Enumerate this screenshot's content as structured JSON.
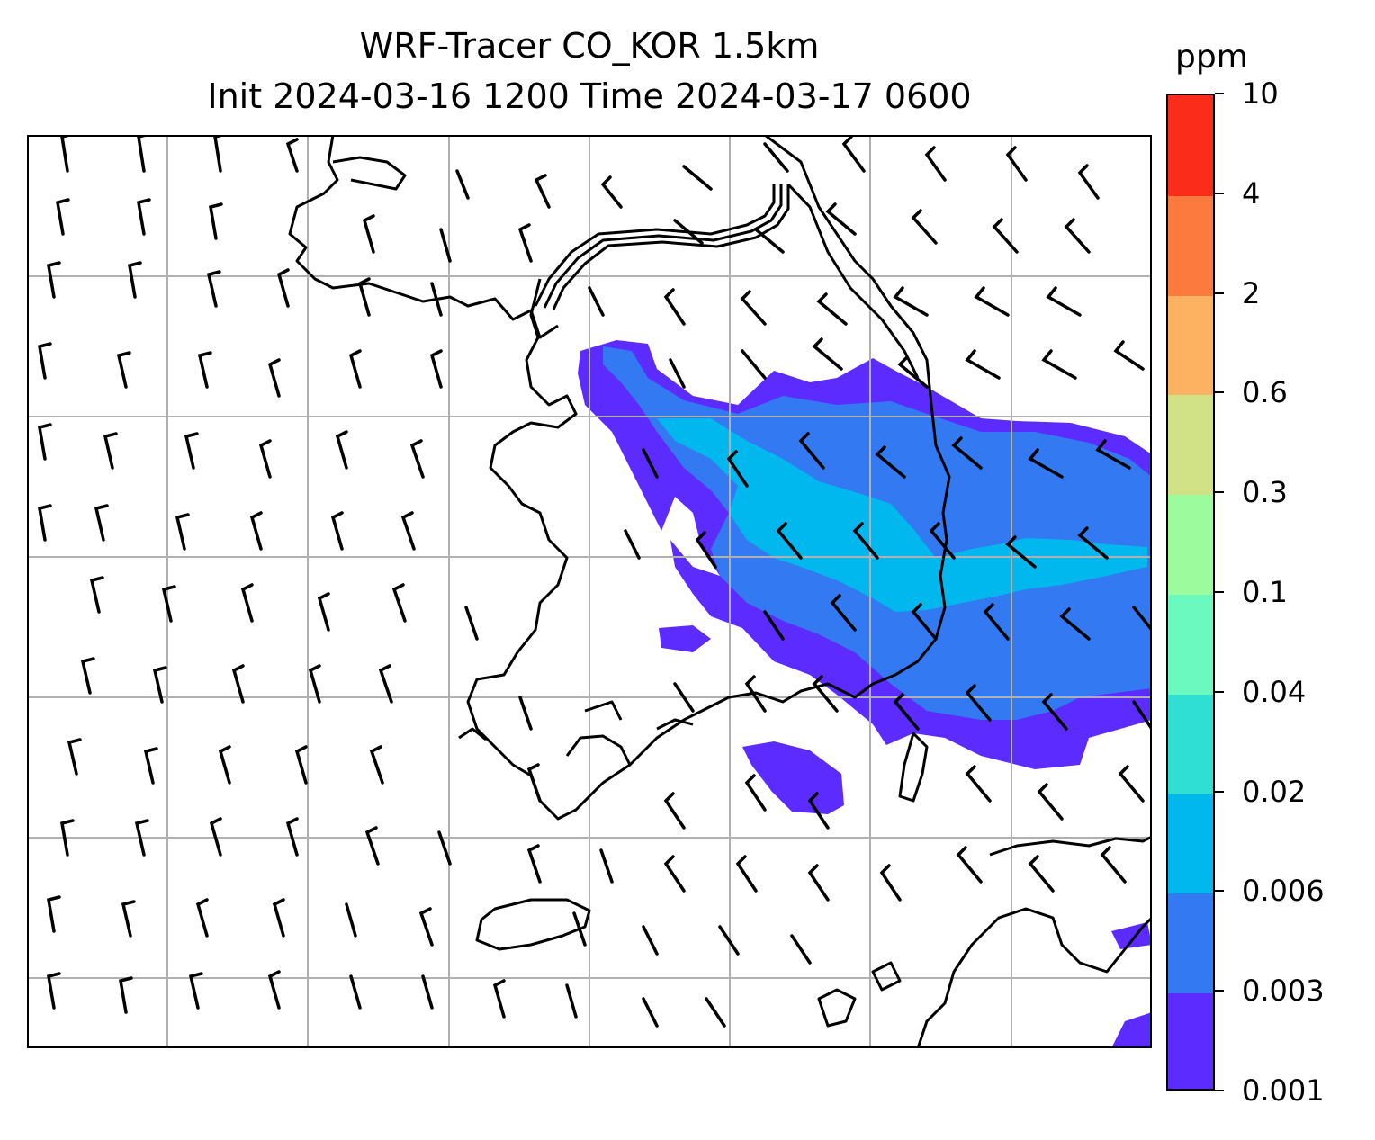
{
  "title": {
    "line1": "WRF-Tracer CO_KOR 1.5km",
    "line2": "Init 2024-03-16 1200 Time 2024-03-17 0600"
  },
  "colorbar": {
    "unit": "ppm",
    "levels": [
      "0.001",
      "0.003",
      "0.006",
      "0.02",
      "0.04",
      "0.1",
      "0.3",
      "0.6",
      "2",
      "4",
      "10"
    ],
    "colors": [
      "#5b2bff",
      "#3379f2",
      "#00b7ee",
      "#30dfd4",
      "#6cf9c0",
      "#9cfb9c",
      "#d1e286",
      "#fcb260",
      "#fc7a3e",
      "#fb2c1a"
    ]
  },
  "map": {
    "gridlines": "on",
    "overlay": "wind-barbs",
    "colors": {
      "coast": "#000000",
      "grid": "#b0b0b0",
      "barb": "#000000"
    }
  }
}
